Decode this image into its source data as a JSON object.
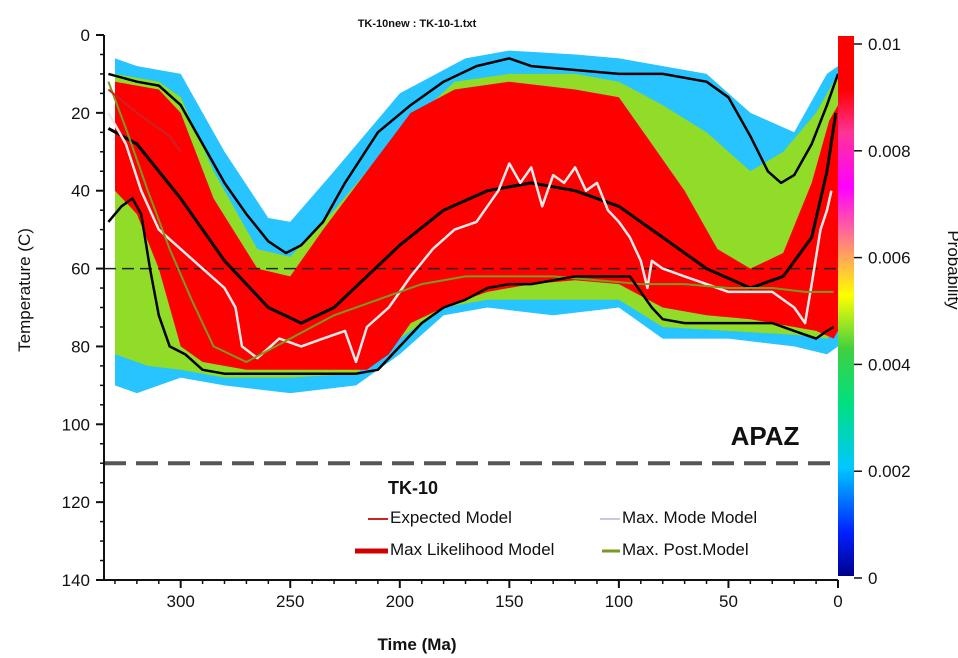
{
  "chart_data": {
    "type": "area",
    "title": "TK-10new : TK-10-1.txt",
    "xlabel": "Time (Ma)",
    "ylabel": "Temperature (C)",
    "xlim": [
      335,
      0
    ],
    "ylim": [
      0,
      140
    ],
    "x_reversed": true,
    "y_reversed": true,
    "xticks": [
      300,
      250,
      200,
      150,
      100,
      50,
      0
    ],
    "yticks": [
      0,
      20,
      40,
      60,
      80,
      100,
      120,
      140
    ],
    "colorbar": {
      "label": "Probability",
      "ticks": [
        "0.01",
        "0.008",
        "0.006",
        "0.004",
        "0.002",
        "0"
      ],
      "tick_values": [
        0.01,
        0.008,
        0.006,
        0.004,
        0.002,
        0
      ],
      "range": [
        0,
        0.01
      ]
    },
    "annotations": [
      {
        "text": "APAZ",
        "x": 0,
        "y": 110
      }
    ],
    "reference_lines": [
      {
        "name": "apaz-line",
        "y": 110,
        "style": "dashed",
        "color": "#555555"
      },
      {
        "name": "hline-60",
        "y": 60,
        "style": "dashed",
        "color": "#222222"
      }
    ],
    "legend": {
      "title": "TK-10",
      "placement": "bottom-center",
      "entries": [
        {
          "label": "Expected Model",
          "color": "#cc2222"
        },
        {
          "label": "Max. Mode Model",
          "color": "#c8c8e8"
        },
        {
          "label": "Max Likelihood Model",
          "color": "#d00000"
        },
        {
          "label": "Max. Post.Model",
          "color": "#7a9a20"
        }
      ]
    },
    "envelope_outer": {
      "upper": [
        [
          330,
          6
        ],
        [
          320,
          8
        ],
        [
          300,
          10
        ],
        [
          280,
          30
        ],
        [
          260,
          47
        ],
        [
          250,
          48
        ],
        [
          230,
          35
        ],
        [
          200,
          15
        ],
        [
          170,
          6
        ],
        [
          150,
          4
        ],
        [
          120,
          5
        ],
        [
          100,
          6
        ],
        [
          80,
          8
        ],
        [
          60,
          10
        ],
        [
          40,
          20
        ],
        [
          20,
          25
        ],
        [
          5,
          10
        ],
        [
          0,
          8
        ]
      ],
      "lower": [
        [
          330,
          90
        ],
        [
          320,
          92
        ],
        [
          300,
          88
        ],
        [
          280,
          90
        ],
        [
          250,
          92
        ],
        [
          220,
          90
        ],
        [
          200,
          82
        ],
        [
          180,
          72
        ],
        [
          160,
          70
        ],
        [
          130,
          72
        ],
        [
          100,
          70
        ],
        [
          80,
          78
        ],
        [
          50,
          78
        ],
        [
          20,
          80
        ],
        [
          5,
          82
        ],
        [
          0,
          80
        ]
      ]
    },
    "envelope_mid": {
      "upper": [
        [
          330,
          10
        ],
        [
          310,
          12
        ],
        [
          300,
          16
        ],
        [
          285,
          35
        ],
        [
          265,
          55
        ],
        [
          250,
          57
        ],
        [
          230,
          45
        ],
        [
          200,
          25
        ],
        [
          175,
          12
        ],
        [
          150,
          10
        ],
        [
          120,
          10
        ],
        [
          100,
          12
        ],
        [
          80,
          18
        ],
        [
          60,
          25
        ],
        [
          40,
          35
        ],
        [
          25,
          30
        ],
        [
          10,
          20
        ],
        [
          2,
          12
        ],
        [
          0,
          10
        ]
      ],
      "lower": [
        [
          330,
          82
        ],
        [
          315,
          85
        ],
        [
          300,
          86
        ],
        [
          280,
          88
        ],
        [
          250,
          88
        ],
        [
          220,
          87
        ],
        [
          200,
          78
        ],
        [
          180,
          70
        ],
        [
          160,
          68
        ],
        [
          130,
          68
        ],
        [
          100,
          68
        ],
        [
          80,
          75
        ],
        [
          50,
          76
        ],
        [
          20,
          77
        ],
        [
          5,
          78
        ],
        [
          0,
          75
        ]
      ]
    },
    "envelope_red": {
      "upper": [
        [
          330,
          12
        ],
        [
          310,
          14
        ],
        [
          300,
          20
        ],
        [
          285,
          42
        ],
        [
          265,
          60
        ],
        [
          250,
          62
        ],
        [
          235,
          50
        ],
        [
          215,
          35
        ],
        [
          195,
          20
        ],
        [
          175,
          14
        ],
        [
          150,
          12
        ],
        [
          120,
          14
        ],
        [
          100,
          16
        ],
        [
          85,
          28
        ],
        [
          70,
          40
        ],
        [
          55,
          55
        ],
        [
          40,
          60
        ],
        [
          25,
          56
        ],
        [
          12,
          38
        ],
        [
          4,
          22
        ],
        [
          0,
          18
        ]
      ],
      "lower": [
        [
          330,
          40
        ],
        [
          320,
          46
        ],
        [
          310,
          60
        ],
        [
          300,
          80
        ],
        [
          290,
          84
        ],
        [
          270,
          86
        ],
        [
          250,
          86
        ],
        [
          230,
          86
        ],
        [
          215,
          86
        ],
        [
          205,
          82
        ],
        [
          195,
          74
        ],
        [
          180,
          70
        ],
        [
          160,
          66
        ],
        [
          140,
          64
        ],
        [
          120,
          63
        ],
        [
          100,
          64
        ],
        [
          80,
          70
        ],
        [
          60,
          72
        ],
        [
          40,
          73
        ],
        [
          20,
          75
        ],
        [
          10,
          76
        ],
        [
          2,
          78
        ],
        [
          0,
          76
        ]
      ]
    },
    "series": [
      {
        "name": "Max Likelihood Model",
        "color": "#000000",
        "points": [
          [
            333,
            24
          ],
          [
            320,
            28
          ],
          [
            300,
            42
          ],
          [
            280,
            58
          ],
          [
            260,
            70
          ],
          [
            245,
            74
          ],
          [
            230,
            70
          ],
          [
            215,
            62
          ],
          [
            200,
            54
          ],
          [
            180,
            45
          ],
          [
            160,
            40
          ],
          [
            140,
            38
          ],
          [
            120,
            40
          ],
          [
            100,
            44
          ],
          [
            80,
            52
          ],
          [
            60,
            60
          ],
          [
            40,
            65
          ],
          [
            25,
            62
          ],
          [
            12,
            52
          ],
          [
            5,
            35
          ],
          [
            1,
            20
          ]
        ]
      },
      {
        "name": "Max. Mode Model",
        "color": "#f2eaea",
        "points": [
          [
            333,
            20
          ],
          [
            325,
            28
          ],
          [
            318,
            40
          ],
          [
            310,
            50
          ],
          [
            300,
            55
          ],
          [
            290,
            60
          ],
          [
            280,
            65
          ],
          [
            275,
            70
          ],
          [
            272,
            80
          ],
          [
            265,
            83
          ],
          [
            255,
            78
          ],
          [
            245,
            80
          ],
          [
            235,
            78
          ],
          [
            225,
            76
          ],
          [
            220,
            84
          ],
          [
            215,
            75
          ],
          [
            205,
            70
          ],
          [
            195,
            62
          ],
          [
            185,
            55
          ],
          [
            175,
            50
          ],
          [
            165,
            48
          ],
          [
            160,
            44
          ],
          [
            155,
            40
          ],
          [
            150,
            33
          ],
          [
            145,
            38
          ],
          [
            140,
            34
          ],
          [
            135,
            44
          ],
          [
            130,
            36
          ],
          [
            125,
            38
          ],
          [
            120,
            34
          ],
          [
            115,
            40
          ],
          [
            110,
            38
          ],
          [
            105,
            45
          ],
          [
            100,
            48
          ],
          [
            95,
            52
          ],
          [
            90,
            58
          ],
          [
            87,
            65
          ],
          [
            85,
            58
          ],
          [
            80,
            60
          ],
          [
            70,
            62
          ],
          [
            60,
            64
          ],
          [
            50,
            66
          ],
          [
            40,
            66
          ],
          [
            30,
            66
          ],
          [
            20,
            70
          ],
          [
            15,
            74
          ],
          [
            12,
            64
          ],
          [
            8,
            50
          ],
          [
            5,
            45
          ],
          [
            3,
            40
          ]
        ]
      },
      {
        "name": "Max. Post.Model",
        "color": "#7a9a20",
        "points": [
          [
            333,
            12
          ],
          [
            325,
            24
          ],
          [
            315,
            40
          ],
          [
            305,
            55
          ],
          [
            295,
            68
          ],
          [
            285,
            80
          ],
          [
            270,
            84
          ],
          [
            250,
            78
          ],
          [
            230,
            72
          ],
          [
            210,
            68
          ],
          [
            190,
            64
          ],
          [
            170,
            62
          ],
          [
            150,
            62
          ],
          [
            130,
            62
          ],
          [
            110,
            63
          ],
          [
            90,
            64
          ],
          [
            70,
            64
          ],
          [
            50,
            65
          ],
          [
            30,
            65
          ],
          [
            15,
            66
          ],
          [
            5,
            66
          ],
          [
            2,
            66
          ]
        ]
      },
      {
        "name": "Expected Model",
        "color": "#cc2222",
        "points": [
          [
            333,
            14
          ],
          [
            320,
            20
          ],
          [
            305,
            26
          ],
          [
            300,
            30
          ]
        ]
      },
      {
        "name": "upper-bound",
        "color": "#000000",
        "points": [
          [
            333,
            10
          ],
          [
            320,
            12
          ],
          [
            310,
            13
          ],
          [
            300,
            18
          ],
          [
            290,
            28
          ],
          [
            280,
            38
          ],
          [
            270,
            46
          ],
          [
            260,
            53
          ],
          [
            252,
            56
          ],
          [
            245,
            54
          ],
          [
            235,
            48
          ],
          [
            225,
            38
          ],
          [
            210,
            25
          ],
          [
            195,
            18
          ],
          [
            180,
            12
          ],
          [
            165,
            8
          ],
          [
            150,
            6
          ],
          [
            140,
            8
          ],
          [
            120,
            9
          ],
          [
            100,
            10
          ],
          [
            80,
            10
          ],
          [
            60,
            12
          ],
          [
            50,
            16
          ],
          [
            40,
            26
          ],
          [
            32,
            35
          ],
          [
            26,
            38
          ],
          [
            20,
            36
          ],
          [
            12,
            28
          ],
          [
            5,
            18
          ],
          [
            0,
            10
          ]
        ]
      },
      {
        "name": "lower-bound",
        "color": "#000000",
        "points": [
          [
            333,
            48
          ],
          [
            327,
            44
          ],
          [
            322,
            42
          ],
          [
            318,
            46
          ],
          [
            314,
            60
          ],
          [
            310,
            72
          ],
          [
            305,
            80
          ],
          [
            298,
            82
          ],
          [
            290,
            86
          ],
          [
            280,
            87
          ],
          [
            260,
            87
          ],
          [
            240,
            87
          ],
          [
            220,
            87
          ],
          [
            210,
            86
          ],
          [
            200,
            80
          ],
          [
            190,
            74
          ],
          [
            180,
            70
          ],
          [
            170,
            68
          ],
          [
            160,
            65
          ],
          [
            150,
            64
          ],
          [
            140,
            64
          ],
          [
            130,
            63
          ],
          [
            120,
            62
          ],
          [
            110,
            62
          ],
          [
            100,
            62
          ],
          [
            95,
            62
          ],
          [
            90,
            66
          ],
          [
            85,
            70
          ],
          [
            80,
            73
          ],
          [
            70,
            74
          ],
          [
            60,
            74
          ],
          [
            50,
            74
          ],
          [
            40,
            74
          ],
          [
            30,
            74
          ],
          [
            20,
            76
          ],
          [
            10,
            78
          ],
          [
            5,
            76
          ],
          [
            2,
            75
          ]
        ]
      }
    ]
  }
}
